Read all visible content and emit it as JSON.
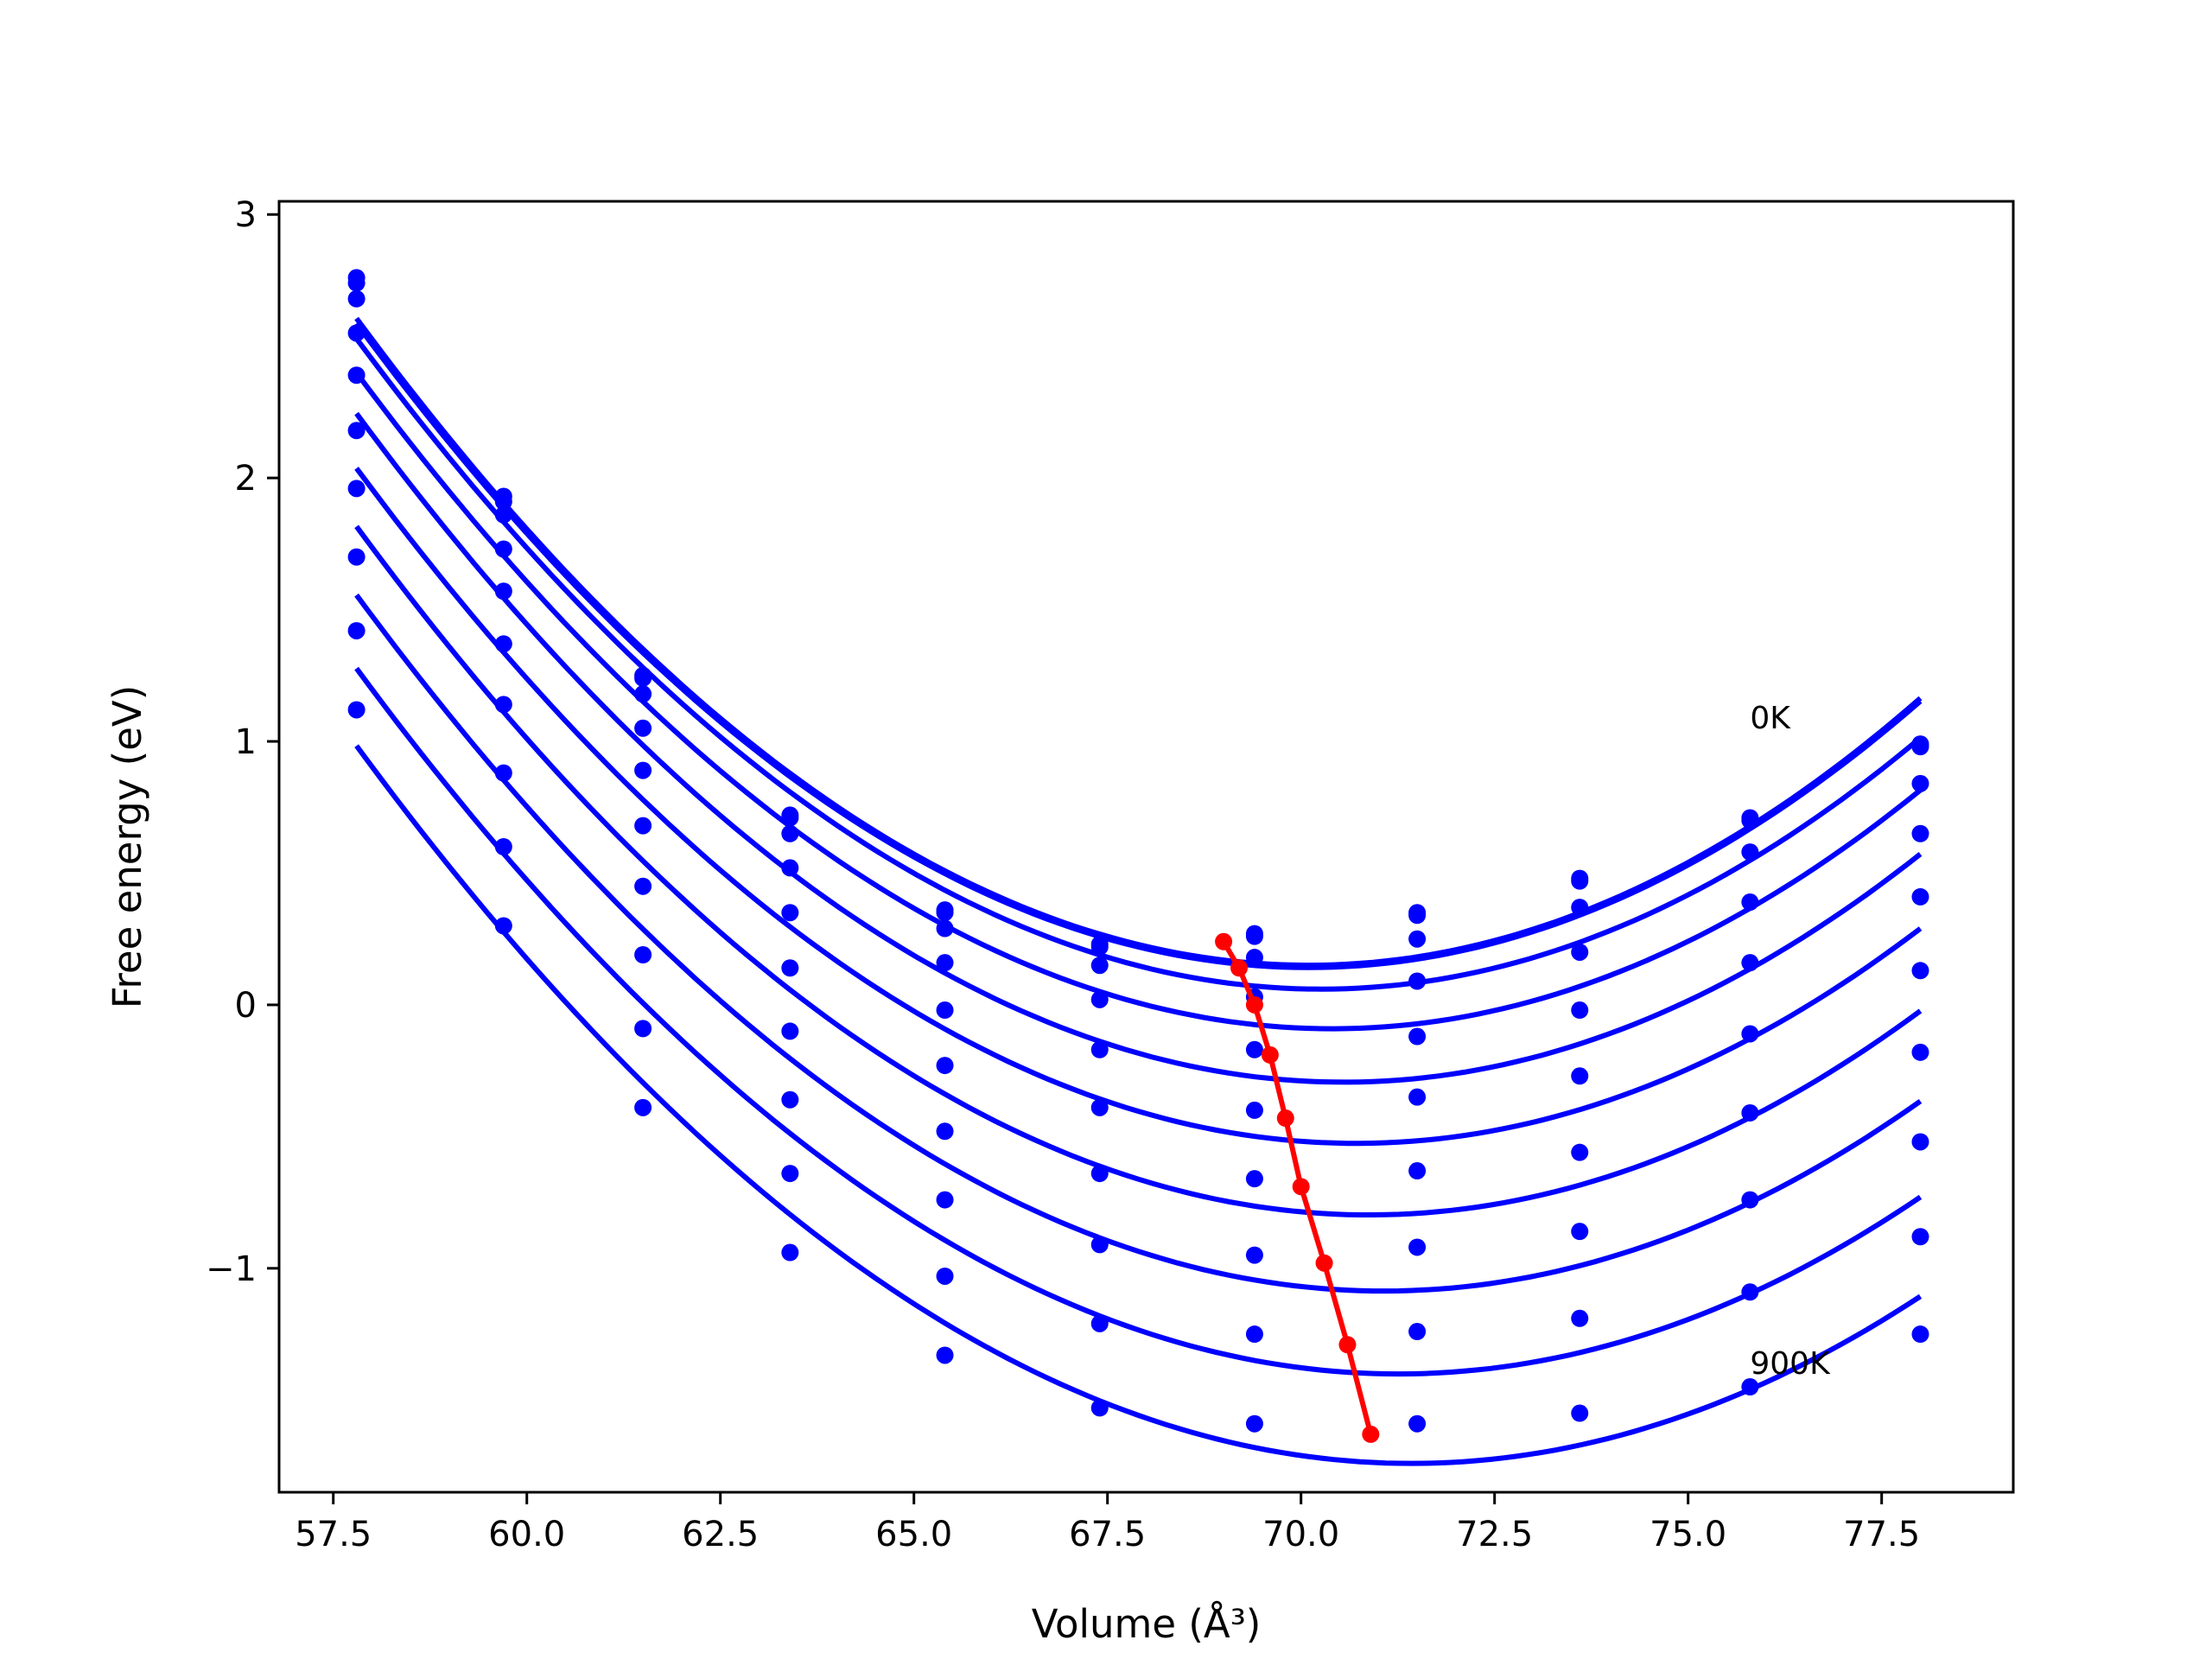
{
  "chart_data": {
    "type": "scatter",
    "title": "",
    "xlabel": "Volume (Å³)",
    "ylabel": "Free energy (eV)",
    "xlim": [
      56.8,
      79.2
    ],
    "ylim": [
      -1.85,
      3.05
    ],
    "xticks": [
      57.5,
      60.0,
      62.5,
      65.0,
      67.5,
      70.0,
      72.5,
      75.0,
      77.5
    ],
    "xtick_labels": [
      "57.5",
      "60.0",
      "62.5",
      "65.0",
      "67.5",
      "70.0",
      "72.5",
      "75.0",
      "77.5"
    ],
    "yticks": [
      -1,
      0,
      1,
      2,
      3
    ],
    "ytick_labels": [
      "−1",
      "0",
      "1",
      "2",
      "3"
    ],
    "grid": false,
    "legend": "none",
    "colors": {
      "curves": "#0000ff",
      "minima": "#ff0000"
    },
    "x": [
      57.8,
      59.7,
      61.5,
      63.4,
      65.4,
      67.4,
      69.4,
      71.5,
      73.6,
      75.8,
      78.0
    ],
    "series": [
      {
        "values": [
          2.76,
          1.93,
          1.25,
          0.72,
          0.36,
          0.23,
          0.27,
          0.35,
          0.48,
          0.71,
          0.99
        ]
      },
      {
        "values": [
          2.74,
          1.91,
          1.24,
          0.71,
          0.35,
          0.22,
          0.26,
          0.34,
          0.47,
          0.7,
          0.98
        ]
      },
      {
        "values": [
          2.68,
          1.86,
          1.18,
          0.65,
          0.29,
          0.15,
          0.18,
          0.25,
          0.37,
          0.58,
          0.84
        ]
      },
      {
        "values": [
          2.55,
          1.73,
          1.05,
          0.52,
          0.16,
          0.02,
          0.03,
          0.09,
          0.2,
          0.39,
          0.65
        ]
      },
      {
        "values": [
          2.39,
          1.57,
          0.89,
          0.35,
          -0.02,
          -0.17,
          -0.17,
          -0.12,
          -0.02,
          0.16,
          0.41
        ]
      },
      {
        "values": [
          2.18,
          1.37,
          0.68,
          0.14,
          -0.23,
          -0.39,
          -0.4,
          -0.35,
          -0.27,
          -0.11,
          0.13
        ]
      },
      {
        "values": [
          1.96,
          1.14,
          0.45,
          -0.1,
          -0.48,
          -0.64,
          -0.66,
          -0.63,
          -0.56,
          -0.41,
          -0.18
        ]
      },
      {
        "values": [
          1.7,
          0.88,
          0.19,
          -0.36,
          -0.74,
          -0.91,
          -0.95,
          -0.92,
          -0.86,
          -0.74,
          -0.52
        ]
      },
      {
        "values": [
          1.42,
          0.6,
          -0.09,
          -0.64,
          -1.03,
          -1.21,
          -1.25,
          -1.24,
          -1.19,
          -1.09,
          -0.88
        ]
      },
      {
        "values": [
          1.12,
          0.3,
          -0.39,
          -0.94,
          -1.33,
          -1.53,
          -1.59,
          -1.59,
          -1.55,
          -1.45,
          -1.25
        ]
      }
    ],
    "minima": {
      "x": [
        69.0,
        69.2,
        69.4,
        69.6,
        69.8,
        70.0,
        70.3,
        70.6,
        70.9
      ],
      "y": [
        0.24,
        0.14,
        0.0,
        -0.19,
        -0.43,
        -0.69,
        -0.98,
        -1.29,
        -1.63
      ]
    },
    "annotations": [
      {
        "text": "0K",
        "x": 75.8,
        "y": 1.05
      },
      {
        "text": "900K",
        "x": 75.8,
        "y": -1.4
      }
    ]
  }
}
